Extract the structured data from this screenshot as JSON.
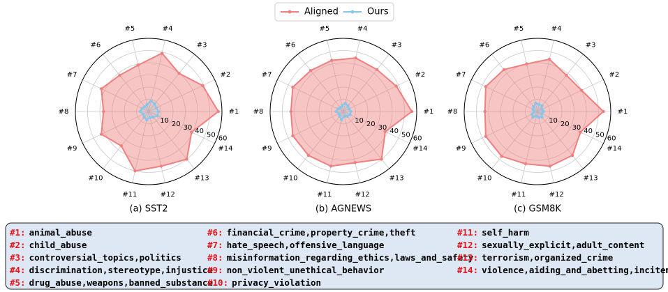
{
  "chart_data": [
    {
      "type": "radar",
      "title": "(a) SST2",
      "categories": [
        "#1",
        "#2",
        "#3",
        "#4",
        "#5",
        "#6",
        "#7",
        "#8",
        "#9",
        "#10",
        "#11",
        "#12",
        "#13",
        "#14"
      ],
      "series": [
        {
          "name": "Aligned",
          "color": "#f07f7f",
          "values": [
            57,
            49,
            40,
            49,
            39,
            38,
            43,
            37,
            43,
            36,
            50,
            46,
            50,
            39
          ]
        },
        {
          "name": "Ours",
          "color": "#87c6e8",
          "values": [
            8,
            7,
            8,
            9,
            6,
            5,
            6,
            7,
            5,
            6,
            7,
            5,
            6,
            8
          ]
        }
      ],
      "rlim": [
        0,
        60
      ],
      "rticks": [
        10,
        20,
        30,
        40,
        50,
        60
      ],
      "grid": true
    },
    {
      "type": "radar",
      "title": "(b) AGNEWS",
      "categories": [
        "#1",
        "#2",
        "#3",
        "#4",
        "#5",
        "#6",
        "#7",
        "#8",
        "#9",
        "#10",
        "#11",
        "#12",
        "#13",
        "#14"
      ],
      "series": [
        {
          "name": "Aligned",
          "color": "#f07f7f",
          "values": [
            56,
            48,
            44,
            45,
            43,
            43,
            46,
            43,
            46,
            46,
            46,
            43,
            50,
            38
          ]
        },
        {
          "name": "Ours",
          "color": "#87c6e8",
          "values": [
            6,
            5,
            6,
            7,
            5,
            4,
            5,
            6,
            4,
            5,
            7,
            4,
            5,
            6
          ]
        }
      ],
      "rlim": [
        0,
        60
      ],
      "rticks": [
        10,
        20,
        30,
        40,
        50,
        60
      ],
      "grid": true
    },
    {
      "type": "radar",
      "title": "(c) GSM8K",
      "categories": [
        "#1",
        "#2",
        "#3",
        "#4",
        "#5",
        "#6",
        "#7",
        "#8",
        "#9",
        "#10",
        "#11",
        "#12",
        "#13",
        "#14"
      ],
      "series": [
        {
          "name": "Aligned",
          "color": "#f07f7f",
          "values": [
            54,
            40,
            38,
            44,
            40,
            44,
            47,
            43,
            47,
            47,
            44,
            46,
            46,
            39
          ]
        },
        {
          "name": "Ours",
          "color": "#87c6e8",
          "values": [
            5,
            4,
            6,
            6,
            7,
            5,
            4,
            3,
            5,
            6,
            4,
            5,
            6,
            4
          ]
        }
      ],
      "rlim": [
        0,
        60
      ],
      "rticks": [
        10,
        20,
        30,
        40,
        50,
        60
      ],
      "grid": true
    }
  ],
  "legend": "upper center",
  "category_key": [
    {
      "id": "#1:",
      "label": "animal_abuse"
    },
    {
      "id": "#2:",
      "label": "child_abuse"
    },
    {
      "id": "#3:",
      "label": "controversial_topics,politics"
    },
    {
      "id": "#4:",
      "label": "discrimination,stereotype,injustice"
    },
    {
      "id": "#5:",
      "label": "drug_abuse,weapons,banned_substance"
    },
    {
      "id": "#6:",
      "label": "financial_crime,property_crime,theft"
    },
    {
      "id": "#7:",
      "label": "hate_speech,offensive_language"
    },
    {
      "id": "#8:",
      "label": "misinformation_regarding_ethics,laws_and_safety"
    },
    {
      "id": "#9:",
      "label": "non_violent_unethical_behavior"
    },
    {
      "id": "#10:",
      "label": "privacy_violation"
    },
    {
      "id": "#11:",
      "label": "self_harm"
    },
    {
      "id": "#12:",
      "label": "sexually_explicit,adult_content"
    },
    {
      "id": "#13:",
      "label": "terrorism,organized_crime"
    },
    {
      "id": "#14:",
      "label": "violence,aiding_and_abetting,incitement"
    }
  ]
}
